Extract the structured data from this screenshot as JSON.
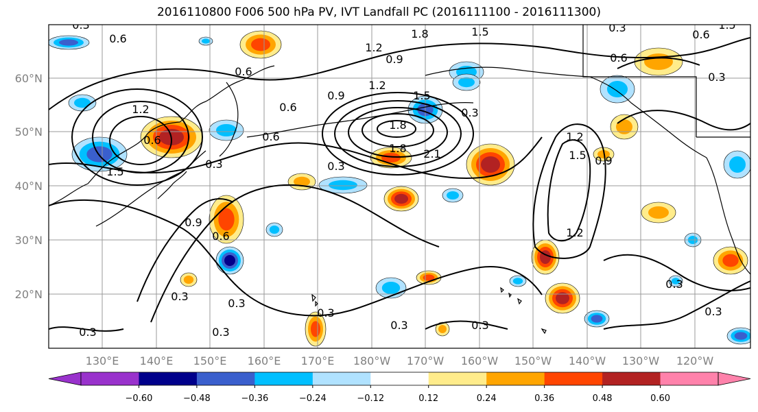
{
  "title": "2016110800 F006 500 hPa PV, IVT Landfall PC (2016111100 - 2016111300)",
  "lat_labels": [
    "60°N",
    "50°N",
    "40°N",
    "30°N",
    "20°N"
  ],
  "lon_labels": [
    "130°E",
    "140°E",
    "150°E",
    "160°E",
    "170°E",
    "180°W",
    "170°W",
    "160°W",
    "150°W",
    "140°W",
    "130°W",
    "120°W"
  ],
  "contour_labels": [
    "0.3",
    "0.6",
    "0.9",
    "1.2",
    "1.5",
    "1.8",
    "2.1"
  ],
  "colorbar": {
    "ticks": [
      "−0.60",
      "−0.48",
      "−0.36",
      "−0.24",
      "−0.12",
      "0.12",
      "0.24",
      "0.36",
      "0.48",
      "0.60"
    ],
    "colors": [
      "#9932CC",
      "#00008B",
      "#3A5FCD",
      "#00BFFF",
      "#B0E2FF",
      "#FFFFFF",
      "#FFEC8B",
      "#FFA500",
      "#FF4500",
      "#B22222",
      "#FF82AB"
    ]
  }
}
